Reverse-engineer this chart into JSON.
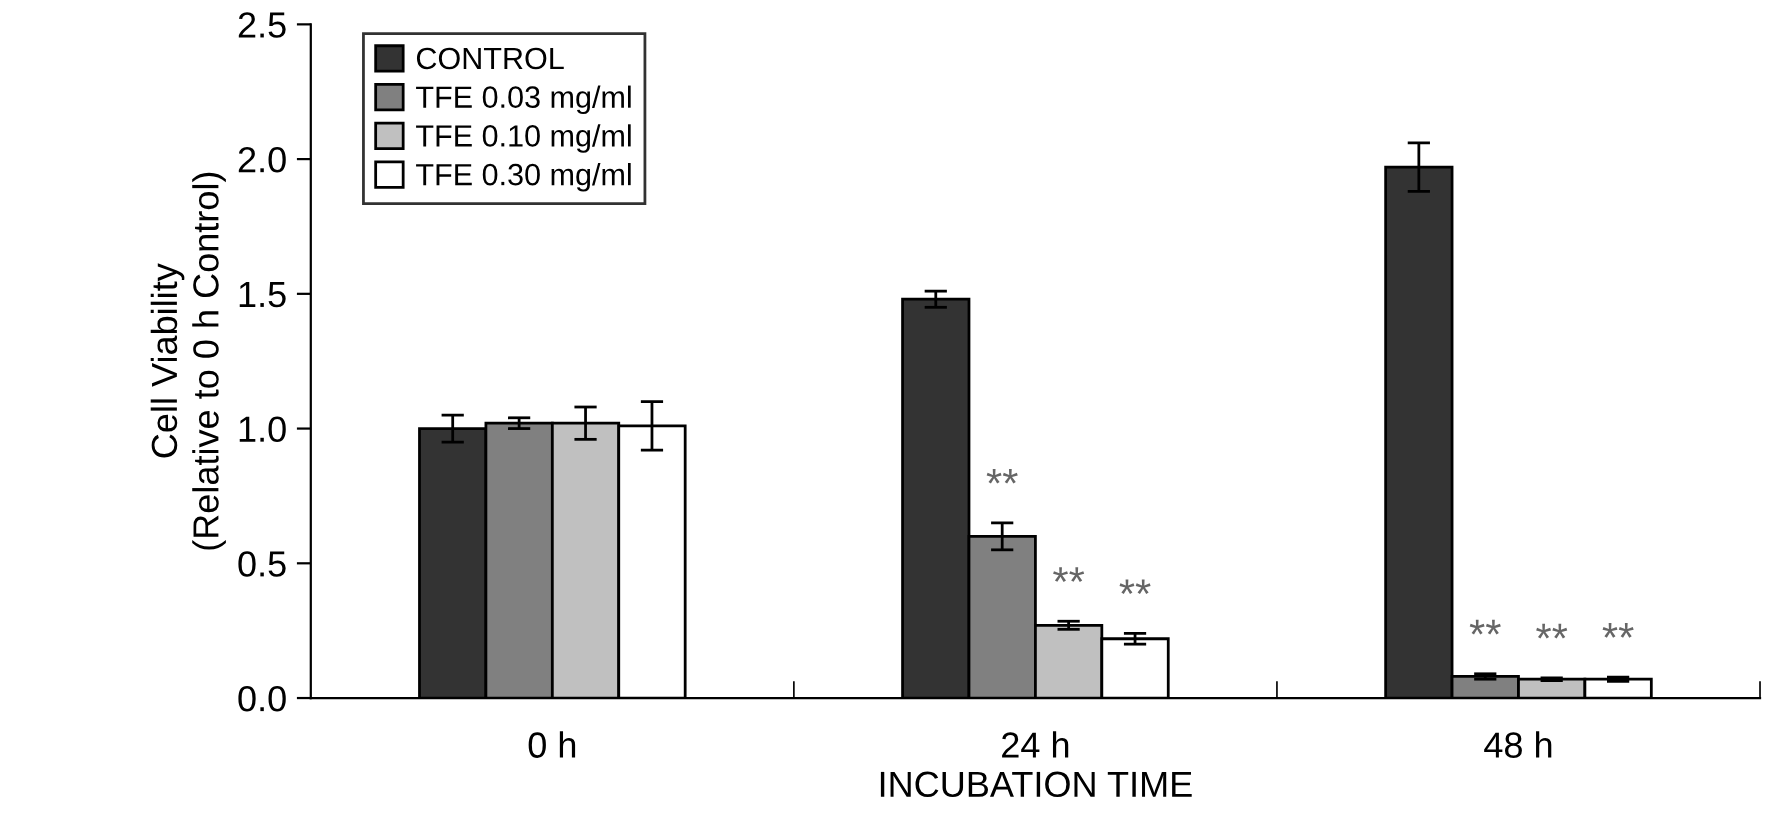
{
  "chart_data": {
    "type": "bar",
    "xlabel": "INCUBATION TIME",
    "ylabel": "Cell Viability\n(Relative to 0 h Control)",
    "categories": [
      "0 h",
      "24 h",
      "48 h"
    ],
    "series": [
      {
        "name": "CONTROL",
        "color": "#333333",
        "values": [
          1.0,
          1.48,
          1.97
        ],
        "errors": [
          0.05,
          0.03,
          0.09
        ]
      },
      {
        "name": "TFE 0.03 mg/ml",
        "color": "#808080",
        "values": [
          1.02,
          0.6,
          0.08
        ],
        "errors": [
          0.02,
          0.05,
          0.01
        ]
      },
      {
        "name": "TFE 0.10 mg/ml",
        "color": "#c0c0c0",
        "values": [
          1.02,
          0.27,
          0.07
        ],
        "errors": [
          0.06,
          0.015,
          0.005
        ]
      },
      {
        "name": "TFE 0.30 mg/ml",
        "color": "#ffffff",
        "values": [
          1.01,
          0.22,
          0.07
        ],
        "errors": [
          0.09,
          0.02,
          0.008
        ]
      }
    ],
    "ylim": [
      0,
      2.5
    ],
    "yticks": [
      {
        "value": 0,
        "label": "0.0"
      },
      {
        "value": 0.5,
        "label": "0.5"
      },
      {
        "value": 1,
        "label": "1.0"
      },
      {
        "value": 1.5,
        "label": "1.5"
      },
      {
        "value": 2,
        "label": "2.0"
      },
      {
        "value": 2.5,
        "label": "2.5"
      }
    ],
    "grid": false,
    "legend": "top left",
    "annotations": [
      "**",
      "**",
      "**",
      "**",
      "**",
      "**"
    ]
  }
}
